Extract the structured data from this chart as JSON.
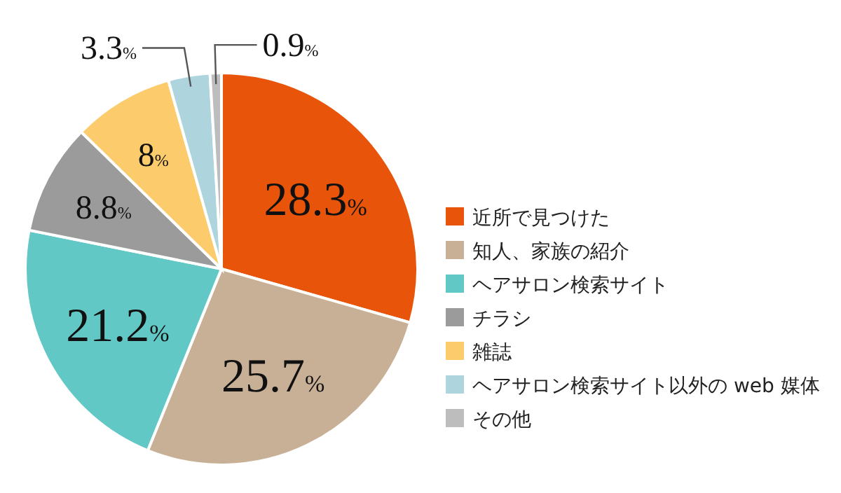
{
  "chart_data": {
    "type": "pie",
    "categories": [
      "近所で見つけた",
      "知人、家族の紹介",
      "ヘアサロン検索サイト",
      "チラシ",
      "雑誌",
      "ヘアサロン検索サイト以外の web 媒体",
      "その他"
    ],
    "values": [
      28.3,
      25.7,
      21.2,
      8.8,
      8,
      3.3,
      0.9
    ],
    "value_labels": [
      "28.3%",
      "25.7%",
      "21.2%",
      "8.8%",
      "8%",
      "3.3%",
      "0.9%"
    ],
    "colors": [
      "#e8540a",
      "#c8b096",
      "#62c8c6",
      "#9b9b9b",
      "#fccb6c",
      "#aed5de",
      "#bdbdbd"
    ],
    "legend": "right"
  }
}
